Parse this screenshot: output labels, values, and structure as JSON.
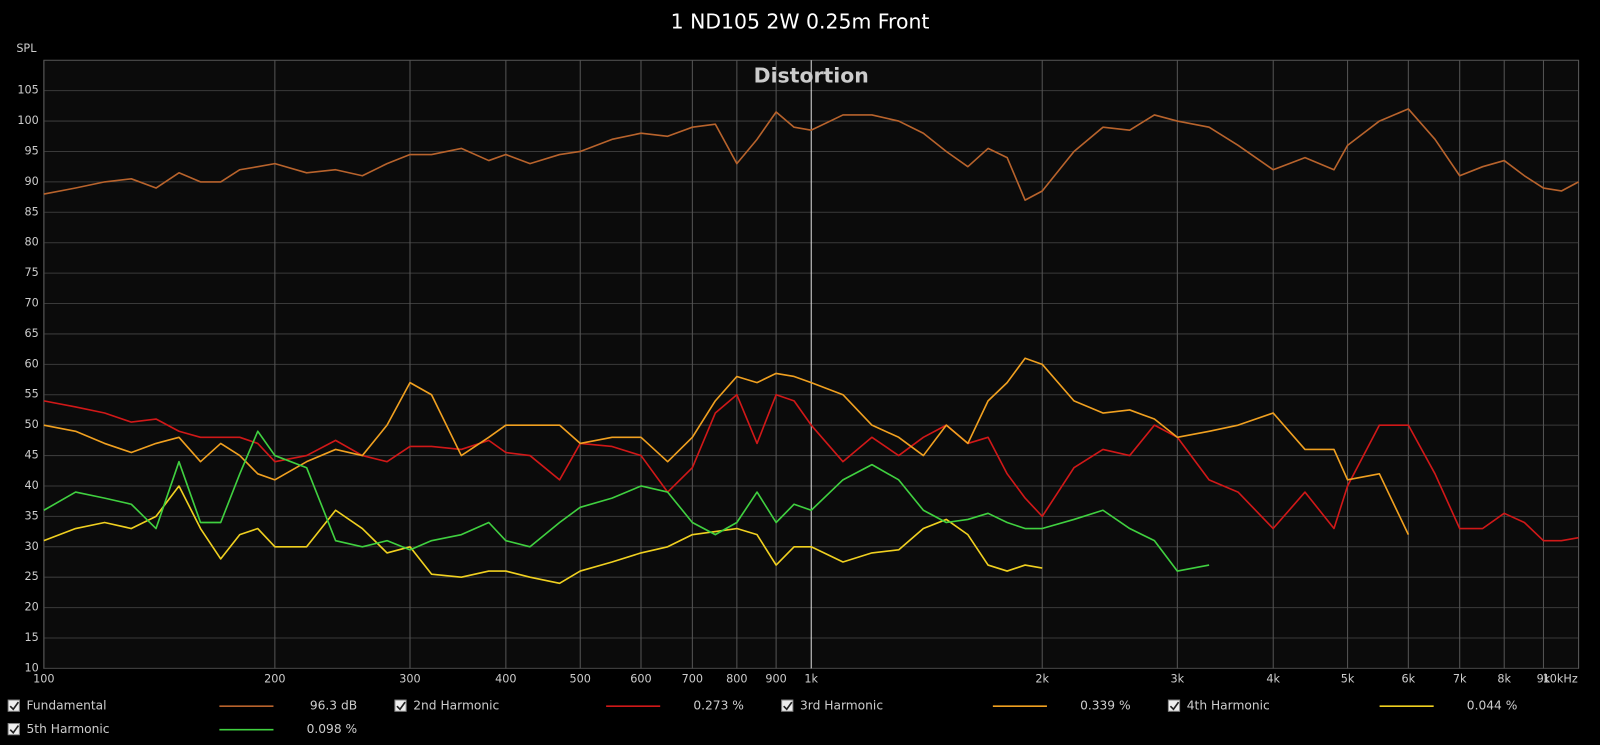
{
  "chart_data": {
    "type": "line",
    "title": "1 ND105 2W 0.25m Front",
    "annotation": "Distortion",
    "y_label": "SPL",
    "xscale": "log",
    "grid": true,
    "xlim": [
      100,
      10000
    ],
    "ylim": [
      10,
      110
    ],
    "xticks": [
      100,
      200,
      300,
      400,
      500,
      600,
      700,
      800,
      900,
      {
        "value": 1000,
        "label": "1k"
      },
      {
        "value": 2000,
        "label": "2k"
      },
      {
        "value": 3000,
        "label": "3k"
      },
      {
        "value": 4000,
        "label": "4k"
      },
      {
        "value": 5000,
        "label": "5k"
      },
      {
        "value": 6000,
        "label": "6k"
      },
      {
        "value": 7000,
        "label": "7k"
      },
      {
        "value": 8000,
        "label": "8k"
      },
      {
        "value": 9000,
        "label": "9k"
      },
      {
        "value": 10000,
        "label": "10kHz"
      }
    ],
    "yticks": [
      10,
      15,
      20,
      25,
      30,
      35,
      40,
      45,
      50,
      55,
      60,
      65,
      70,
      75,
      80,
      85,
      90,
      95,
      100,
      105
    ],
    "x": [
      100,
      110,
      120,
      130,
      140,
      150,
      160,
      170,
      180,
      190,
      200,
      220,
      240,
      260,
      280,
      300,
      320,
      350,
      380,
      400,
      430,
      470,
      500,
      550,
      600,
      650,
      700,
      750,
      800,
      850,
      900,
      950,
      1000,
      1100,
      1200,
      1300,
      1400,
      1500,
      1600,
      1700,
      1800,
      1900,
      2000,
      2200,
      2400,
      2600,
      2800,
      3000,
      3300,
      3600,
      4000,
      4400,
      4800,
      5000,
      5500,
      6000,
      6500,
      7000,
      7500,
      8000,
      8500,
      9000,
      9500,
      10000
    ],
    "series": [
      {
        "name": "Fundamental",
        "legend_value": "96.3 dB",
        "color": "#b8632c",
        "values": [
          88,
          89,
          90,
          90.5,
          89,
          91.5,
          90,
          90,
          92,
          92.5,
          93,
          91.5,
          92,
          91,
          93,
          94.5,
          94.5,
          95.5,
          93.5,
          94.5,
          93,
          94.5,
          95,
          97,
          98,
          97.5,
          99,
          99.5,
          93,
          97,
          101.5,
          99,
          98.5,
          101,
          101,
          100,
          98,
          95,
          92.5,
          95.5,
          94,
          87,
          88.5,
          95,
          99,
          98.5,
          101,
          100,
          99,
          96,
          92,
          94,
          92,
          96,
          100,
          102,
          97,
          91,
          92.5,
          93.5,
          91,
          89,
          88.5,
          90
        ]
      },
      {
        "name": "2nd Harmonic",
        "legend_value": "0.273 %",
        "color": "#d01818",
        "values": [
          54,
          53,
          52,
          50.5,
          51,
          49,
          48,
          48,
          48,
          47,
          44,
          45,
          47.5,
          45,
          44,
          46.5,
          46.5,
          46,
          47.5,
          45.5,
          45,
          41,
          47,
          46.5,
          45,
          39,
          43,
          52,
          55,
          47,
          55,
          54,
          50,
          44,
          48,
          45,
          48,
          50,
          47,
          48,
          42,
          38,
          35,
          43,
          46,
          45,
          50,
          48,
          41,
          39,
          33,
          39,
          33,
          40,
          50,
          50,
          42,
          33,
          33,
          35.5,
          34,
          31,
          31,
          31.5
        ]
      },
      {
        "name": "3rd Harmonic",
        "legend_value": "0.339 %",
        "color": "#f0a020",
        "values": [
          50,
          49,
          47,
          45.5,
          47,
          48,
          44,
          47,
          45,
          42,
          41,
          44,
          46,
          45,
          50,
          57,
          55,
          45,
          48,
          50,
          50,
          50,
          47,
          48,
          48,
          44,
          48,
          54,
          58,
          57,
          58.5,
          58,
          57,
          55,
          50,
          48,
          45,
          50,
          47,
          54,
          57,
          61,
          60,
          54,
          52,
          52.5,
          51,
          48,
          49,
          50,
          52,
          46,
          46,
          41,
          42,
          32,
          null,
          null,
          null,
          null,
          null,
          null,
          null,
          null
        ]
      },
      {
        "name": "4th Harmonic",
        "legend_value": "0.044 %",
        "color": "#f0d020",
        "values": [
          31,
          33,
          34,
          33,
          35,
          40,
          33,
          28,
          32,
          33,
          30,
          30,
          36,
          33,
          29,
          30,
          25.5,
          25,
          26,
          26,
          25,
          24,
          26,
          27.5,
          29,
          30,
          32,
          32.5,
          33,
          32,
          27,
          30,
          30,
          27.5,
          29,
          29.5,
          33,
          34.5,
          32,
          27,
          26,
          27,
          26.5,
          null,
          null,
          null,
          null,
          null,
          null,
          null,
          null,
          null,
          null,
          null,
          null,
          null,
          null,
          null,
          null,
          null,
          null,
          null,
          null,
          null
        ]
      },
      {
        "name": "5th Harmonic",
        "legend_value": "0.098 %",
        "color": "#40d040",
        "values": [
          36,
          39,
          38,
          37,
          33,
          44,
          34,
          34,
          42,
          49,
          45,
          43,
          31,
          30,
          31,
          29.5,
          31,
          32,
          34,
          31,
          30,
          34,
          36.5,
          38,
          40,
          39,
          34,
          32,
          34,
          39,
          34,
          37,
          36,
          41,
          43.5,
          41,
          36,
          34,
          34.5,
          35.5,
          34,
          33,
          33,
          34.5,
          36,
          33,
          31,
          26,
          27,
          null,
          null,
          null,
          null,
          null,
          null,
          null,
          null,
          null,
          null,
          null,
          null,
          null,
          null,
          null
        ]
      }
    ]
  }
}
